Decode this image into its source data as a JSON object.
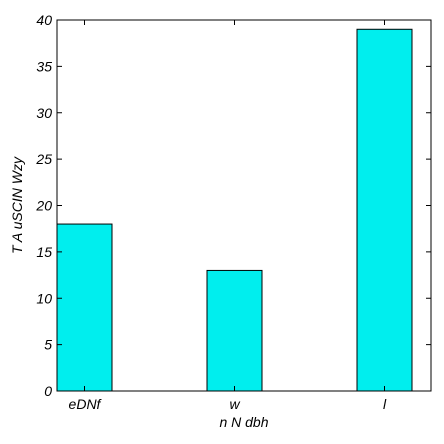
{
  "chart_data": {
    "type": "bar",
    "title": "",
    "xlabel": "n N dbh",
    "ylabel": "T A uSCIN Wzy",
    "categories": [
      "eDNf",
      "w",
      "l"
    ],
    "values": [
      18,
      13,
      39
    ],
    "ylim": [
      0,
      40
    ],
    "yticks": [
      0,
      5,
      10,
      15,
      20,
      25,
      30,
      35,
      40
    ],
    "bar_color": "#00eeee",
    "edge_color": "#000000",
    "grid": false,
    "legend": "none"
  }
}
